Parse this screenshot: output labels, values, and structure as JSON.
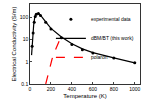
{
  "chart_data": {
    "type": "scatter",
    "x_label": "Temperature (K)",
    "y_label": "Electrical Conductivity (S/m)",
    "log": "y",
    "grid": false,
    "legend": "top right",
    "xlim": [
      0,
      1050
    ],
    "xticks": [
      0,
      200,
      400,
      600,
      800,
      1000
    ],
    "ylim": [
      0.1,
      400
    ],
    "yticks": [
      0.1,
      1,
      10,
      100
    ],
    "series": [
      {
        "name": "experimental data",
        "type": "scatter",
        "marker": "circle",
        "color": "#000000",
        "x": [
          20,
          30,
          40,
          50,
          60,
          80,
          100,
          150,
          200,
          300,
          400,
          500,
          600,
          800,
          1000
        ],
        "values": [
          5,
          20,
          60,
          110,
          140,
          150,
          120,
          60,
          30,
          12,
          6,
          3.5,
          2.5,
          1.5,
          0.9
        ]
      },
      {
        "name": "dBM/BT (this work)",
        "type": "line",
        "line_style": "solid",
        "color": "#000000",
        "x": [
          15,
          25,
          35,
          45,
          60,
          80,
          100,
          150,
          200,
          300,
          400,
          500,
          600,
          800,
          1000
        ],
        "values": [
          2,
          12,
          45,
          100,
          145,
          150,
          125,
          62,
          32,
          13,
          6.5,
          3.8,
          2.6,
          1.5,
          0.9
        ]
      },
      {
        "name": "polaron",
        "type": "line",
        "line_style": "dash",
        "color": "#ff0000",
        "x": [
          150,
          170,
          190,
          210,
          230,
          250,
          280,
          300
        ],
        "values": [
          0.1,
          0.25,
          0.6,
          1.3,
          2.5,
          4.5,
          9,
          14
        ]
      }
    ]
  }
}
